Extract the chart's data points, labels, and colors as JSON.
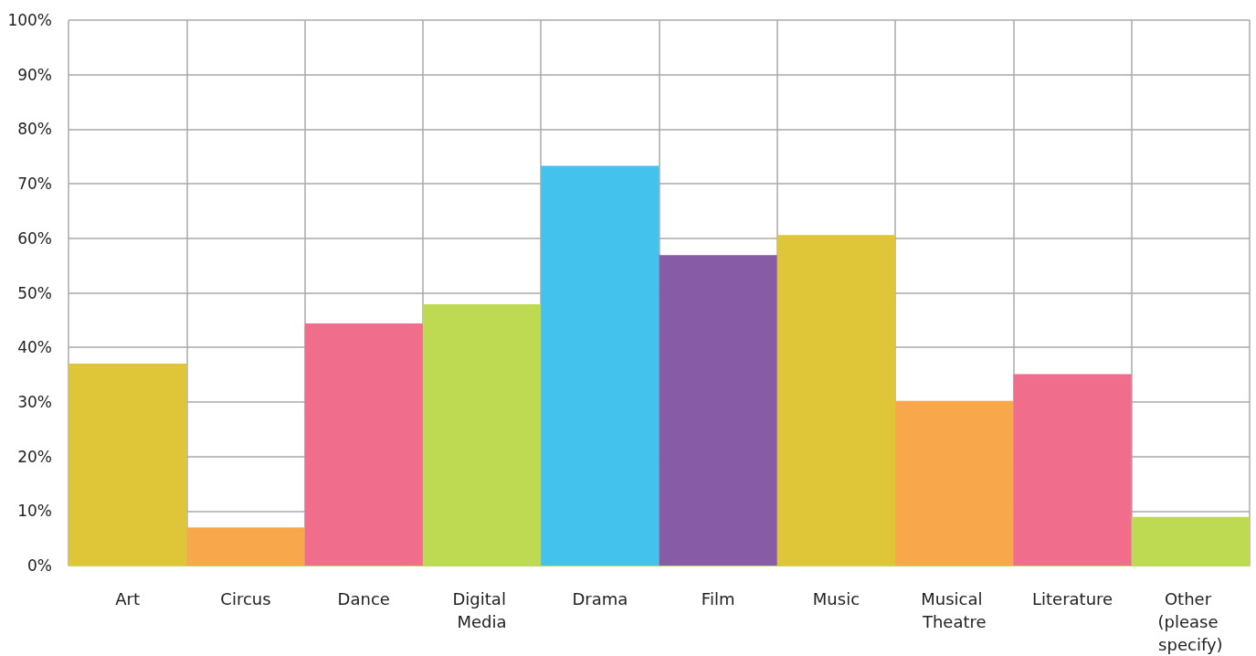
{
  "chart_data": {
    "type": "bar",
    "categories": [
      "Art",
      "Circus",
      "Dance",
      "Digital Media",
      "Drama",
      "Film",
      "Music",
      "Musical Theatre",
      "Literature",
      "Other (please specify)"
    ],
    "values": [
      37,
      7,
      44.4,
      47.9,
      73.3,
      56.9,
      60.6,
      30.2,
      35.1,
      8.9
    ],
    "colors": [
      "#dfc538",
      "#f8a84a",
      "#f06d8c",
      "#bed952",
      "#43c2ee",
      "#875ba6",
      "#dfc538",
      "#f8a84a",
      "#f06d8c",
      "#bed952"
    ],
    "ylim": [
      0,
      100
    ],
    "yticks": [
      {
        "value": 0,
        "label": "0%"
      },
      {
        "value": 10,
        "label": "10%"
      },
      {
        "value": 20,
        "label": "20%"
      },
      {
        "value": 30,
        "label": "30%"
      },
      {
        "value": 40,
        "label": "40%"
      },
      {
        "value": 50,
        "label": "50%"
      },
      {
        "value": 60,
        "label": "60%"
      },
      {
        "value": 70,
        "label": "70%"
      },
      {
        "value": 80,
        "label": "80%"
      },
      {
        "value": 90,
        "label": "90%"
      },
      {
        "value": 100,
        "label": "100%"
      }
    ],
    "grid": true
  }
}
